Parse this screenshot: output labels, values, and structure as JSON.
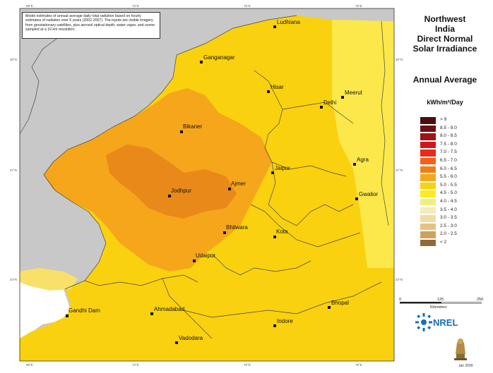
{
  "note": "Model estimates of annual average daily total radiation based on hourly estimates of radiation over 6 years (2002-2007). The inputs are visible imagery from geostationary satellites, plus aerosol optical depth, water vapor, and ozone sampled at a 10 km resolution.",
  "title_lines": [
    "Northwest",
    "India",
    "Direct Normal",
    "Solar Irradiance"
  ],
  "subtitle": "Annual Average",
  "units": "kWh/m²/Day",
  "legend": [
    {
      "label": "> 9",
      "color": "#4a0d10"
    },
    {
      "label": "8.5 - 9.0",
      "color": "#6e1014"
    },
    {
      "label": "8.0 - 8.5",
      "color": "#9e1418"
    },
    {
      "label": "7.5 - 8.0",
      "color": "#cc1a1c"
    },
    {
      "label": "7.0 - 7.5",
      "color": "#ea2a1c"
    },
    {
      "label": "6.5 - 7.0",
      "color": "#f45f1a"
    },
    {
      "label": "6.0 - 6.5",
      "color": "#f07e16"
    },
    {
      "label": "5.5 - 6.0",
      "color": "#f5a61a"
    },
    {
      "label": "5.0 - 5.5",
      "color": "#f9d10f"
    },
    {
      "label": "4.5 - 5.0",
      "color": "#fcec1d"
    },
    {
      "label": "4.0 - 4.5",
      "color": "#f1ee7c"
    },
    {
      "label": "3.5 - 4.0",
      "color": "#f3efb4"
    },
    {
      "label": "3.0 - 3.5",
      "color": "#f2dca4"
    },
    {
      "label": "2.5 - 3.0",
      "color": "#e7c27d"
    },
    {
      "label": "2.0 - 2.5",
      "color": "#cfa25c"
    },
    {
      "label": "< 2",
      "color": "#8f6b3b"
    }
  ],
  "scale": {
    "ticks": [
      "0",
      "125",
      "250"
    ],
    "unit": "Kilometers"
  },
  "logo_text": "NREL",
  "date": "Jan 2009",
  "coords": {
    "top": [
      "69°E",
      "72°E",
      "75°E",
      "78°E"
    ],
    "bottom": [
      "69°E",
      "72°E",
      "75°E",
      "78°E"
    ],
    "left": [
      "30°N",
      "27°N",
      "24°N"
    ],
    "right": [
      "30°N",
      "27°N",
      "24°N"
    ]
  },
  "cities": [
    {
      "name": "Ludhiana"
    },
    {
      "name": "Ganganagar"
    },
    {
      "name": "Hisar"
    },
    {
      "name": "Meerut"
    },
    {
      "name": "Delhi"
    },
    {
      "name": "Bikaner"
    },
    {
      "name": "Agra"
    },
    {
      "name": "Jaipur"
    },
    {
      "name": "Jodhpur"
    },
    {
      "name": "Ajmer"
    },
    {
      "name": "Gwalior"
    },
    {
      "name": "Bhilwara"
    },
    {
      "name": "Kota"
    },
    {
      "name": "Udaipur"
    },
    {
      "name": "Bhopal"
    },
    {
      "name": "Gandhi Dam"
    },
    {
      "name": "Ahmadabad"
    },
    {
      "name": "Indore"
    },
    {
      "name": "Vadodara"
    }
  ],
  "colors": {
    "outside": "#c8c8c8",
    "lowband": "#f9d10f",
    "midband": "#f5a61a",
    "highband": "#f07e16",
    "water": "#ffffff"
  }
}
